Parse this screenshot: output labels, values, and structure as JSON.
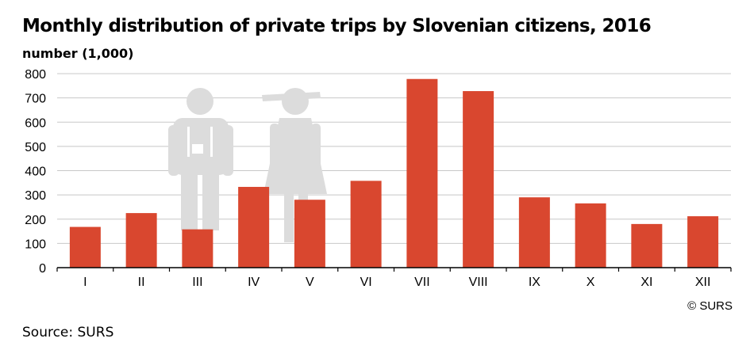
{
  "chart_data": {
    "type": "bar",
    "title": "Monthly distribution of private trips by Slovenian citizens, 2016",
    "ylabel": "number (1,000)",
    "xlabel": "",
    "categories": [
      "I",
      "II",
      "III",
      "IV",
      "V",
      "VI",
      "VII",
      "VIII",
      "IX",
      "X",
      "XI",
      "XII"
    ],
    "values": [
      168,
      225,
      158,
      333,
      280,
      358,
      778,
      728,
      290,
      265,
      180,
      212
    ],
    "yticks": [
      "0",
      "100",
      "200",
      "300",
      "400",
      "500",
      "600",
      "700",
      "800"
    ],
    "ylim": [
      0,
      800
    ],
    "grid": true,
    "bar_color": "#d9472f"
  },
  "copyright": "© SURS",
  "source": "Source: SURS",
  "decoration": {
    "icon": "tourist-couple-icon",
    "color": "#dcdcdc"
  }
}
